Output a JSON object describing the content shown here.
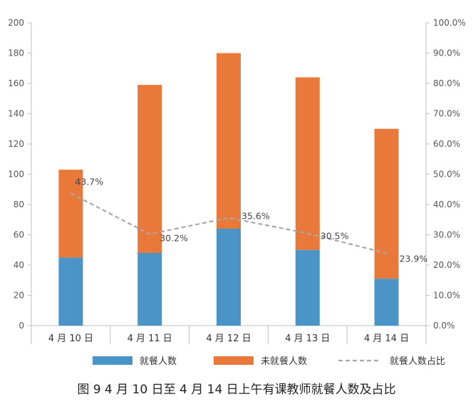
{
  "chart_data": {
    "type": "bar",
    "stacked": true,
    "categories": [
      "4 月 10 日",
      "4 月 11 日",
      "4 月 12 日",
      "4 月 13 日",
      "4 月 14 日"
    ],
    "series": [
      {
        "name": "就餐人数",
        "type": "bar",
        "axis": "left",
        "color": "#4a94c8",
        "values": [
          45,
          48,
          64,
          50,
          31
        ]
      },
      {
        "name": "未就餐人数",
        "type": "bar",
        "axis": "left",
        "color": "#e8793a",
        "values": [
          58,
          111,
          116,
          114,
          99
        ]
      },
      {
        "name": "就餐人数占比",
        "type": "line",
        "style": "dashed",
        "axis": "right",
        "color": "#a8a8a8",
        "values": [
          43.7,
          30.2,
          35.6,
          30.5,
          23.9
        ],
        "labels": [
          "43.7%",
          "30.2%",
          "35.6%",
          "30.5%",
          "23.9%"
        ]
      }
    ],
    "left_axis": {
      "ylim": [
        0,
        200
      ],
      "ticks": [
        "0",
        "20",
        "40",
        "60",
        "80",
        "100",
        "120",
        "140",
        "160",
        "180",
        "200"
      ]
    },
    "right_axis": {
      "ylim": [
        0,
        100
      ],
      "ticks": [
        "0.0%",
        "10.0%",
        "20.0%",
        "30.0%",
        "40.0%",
        "50.0%",
        "60.0%",
        "70.0%",
        "80.0%",
        "90.0%",
        "100.0%"
      ]
    },
    "grid": false,
    "legend_position": "bottom",
    "caption": "图 9  4 月 10 日至 4 月 14 日上午有课教师就餐人数及占比"
  }
}
